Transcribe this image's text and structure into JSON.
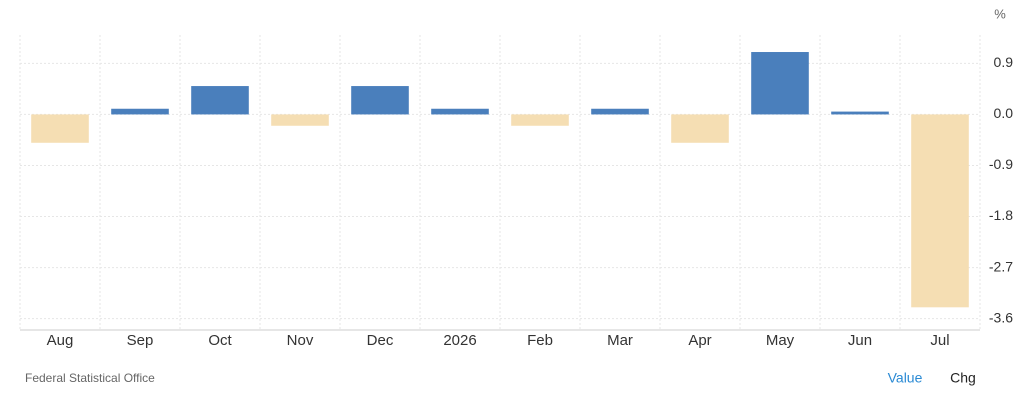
{
  "chart_data": {
    "type": "bar",
    "y_unit": "%",
    "categories": [
      "Aug",
      "Sep",
      "Oct",
      "Nov",
      "Dec",
      "2026",
      "Feb",
      "Mar",
      "Apr",
      "May",
      "Jun",
      "Jul"
    ],
    "values": [
      -0.5,
      0.1,
      0.5,
      -0.2,
      0.5,
      0.1,
      -0.2,
      0.1,
      -0.5,
      1.1,
      0.05,
      -3.4
    ],
    "positive_color": "#4a7fbc",
    "negative_color": "#f5deb3",
    "ylim": [
      -3.8,
      1.4
    ],
    "yticks": [
      0.9,
      {
        "value": 0,
        "label": "0.0"
      },
      -0.9,
      -1.8,
      -2.7,
      -3.6
    ],
    "grid": true
  },
  "footer": {
    "source": "Federal Statistical Office",
    "buttons": [
      "Value",
      "Chg"
    ]
  }
}
